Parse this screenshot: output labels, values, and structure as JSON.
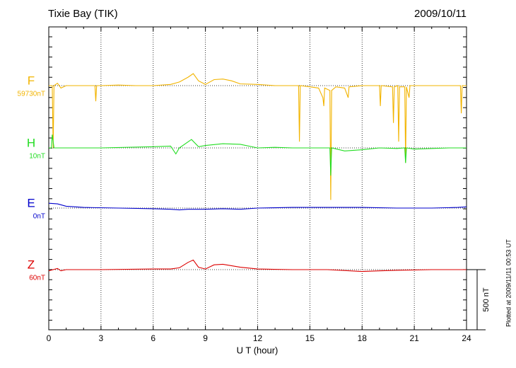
{
  "chart_data": {
    "type": "line",
    "title": "Tixie Bay (TIK)",
    "date": "2009/10/11",
    "x_label": "U T (hour)",
    "xlim": [
      0,
      24
    ],
    "xticks": [
      0,
      3,
      6,
      9,
      12,
      15,
      18,
      21,
      24
    ],
    "grid": true,
    "scale_bar": {
      "value": 500,
      "label": "500 nT"
    },
    "footnote": "Plotted at 2009/11/11 00:53 UT",
    "series": [
      {
        "name": "F",
        "baseline_label": "59730nT",
        "color": "#f2b400",
        "x": [
          0,
          0.2,
          0.25,
          0.3,
          0.5,
          0.7,
          1,
          2,
          2.65,
          2.7,
          2.75,
          3,
          4,
          5,
          6,
          7,
          7.5,
          8,
          8.3,
          8.6,
          9,
          9.5,
          10,
          10.5,
          11,
          12,
          13,
          14,
          14.35,
          14.4,
          14.45,
          15,
          15.5,
          15.75,
          15.8,
          15.85,
          16,
          16.15,
          16.2,
          16.25,
          16.5,
          17,
          17.2,
          17.25,
          18,
          19,
          19.05,
          19.1,
          19.75,
          19.8,
          19.85,
          20.05,
          20.1,
          20.15,
          20.45,
          20.5,
          20.55,
          20.7,
          20.75,
          21,
          22,
          23,
          23.65,
          23.7,
          23.75,
          24
        ],
        "values": [
          0,
          0,
          -520,
          0,
          20,
          -20,
          0,
          0,
          0,
          -130,
          0,
          0,
          5,
          0,
          0,
          10,
          30,
          70,
          100,
          40,
          10,
          50,
          55,
          40,
          15,
          10,
          0,
          0,
          0,
          -465,
          0,
          -10,
          -20,
          -100,
          -170,
          -20,
          -30,
          -40,
          -950,
          -40,
          -10,
          -20,
          -100,
          -10,
          0,
          0,
          -170,
          0,
          -10,
          -310,
          -10,
          0,
          -465,
          -10,
          -10,
          -640,
          -10,
          -100,
          0,
          0,
          0,
          0,
          0,
          -230,
          0,
          0
        ]
      },
      {
        "name": "H",
        "baseline_label": "10nT",
        "color": "#22dd22",
        "x": [
          0,
          0.15,
          0.2,
          0.3,
          1,
          3,
          6,
          7,
          7.3,
          7.5,
          8.2,
          8.6,
          9,
          10,
          11,
          12,
          13,
          14,
          15,
          16,
          16.15,
          16.2,
          16.25,
          17,
          18,
          19,
          20,
          20.45,
          20.5,
          20.55,
          21,
          22,
          23,
          24
        ],
        "values": [
          0,
          0,
          110,
          0,
          0,
          0,
          10,
          15,
          -50,
          0,
          70,
          10,
          20,
          35,
          30,
          0,
          5,
          0,
          0,
          0,
          0,
          -230,
          0,
          -25,
          -15,
          0,
          -5,
          0,
          -125,
          0,
          -10,
          -5,
          0,
          0
        ]
      },
      {
        "name": "E",
        "baseline_label": "0nT",
        "color": "#0000cc",
        "x": [
          0,
          0.5,
          1,
          2,
          4,
          6,
          7,
          7.5,
          8,
          9,
          10,
          11,
          12,
          14,
          16,
          18,
          20,
          22,
          23.5,
          24
        ],
        "values": [
          40,
          35,
          15,
          5,
          0,
          -5,
          -10,
          -15,
          -10,
          -10,
          -5,
          -10,
          0,
          5,
          5,
          5,
          0,
          0,
          5,
          10
        ]
      },
      {
        "name": "Z",
        "baseline_label": "60nT",
        "color": "#dd0000",
        "x": [
          0,
          0.5,
          0.7,
          1,
          3,
          6,
          7,
          7.5,
          8,
          8.3,
          8.6,
          9,
          9.5,
          10,
          11,
          12,
          14,
          16,
          18,
          19,
          20,
          22,
          24
        ],
        "values": [
          -10,
          10,
          -10,
          0,
          0,
          5,
          5,
          15,
          60,
          80,
          20,
          5,
          40,
          45,
          20,
          5,
          0,
          0,
          -15,
          -10,
          -5,
          0,
          0
        ]
      }
    ]
  }
}
